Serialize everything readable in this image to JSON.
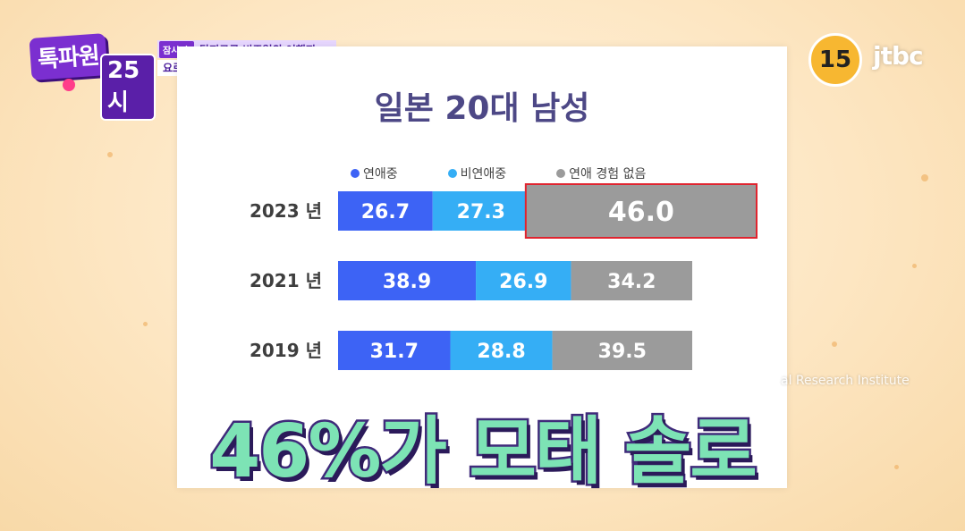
{
  "show_logo": {
    "main": "톡파원",
    "sub": "25시"
  },
  "caption": {
    "tag": "잠시 후",
    "line1": "탈지구급 비주얼의 여행지",
    "line2": "요르단 랜선 여행"
  },
  "age_rating": "15",
  "channel": "jtbc",
  "source_text": "al Research Institute",
  "subtitle": "46%가 모태 솔로",
  "chart_data": {
    "type": "bar",
    "orientation": "horizontal-stacked-100",
    "title": "일본 20대 남성",
    "categories": [
      "2023 년",
      "2021 년",
      "2019 년"
    ],
    "series": [
      {
        "name": "연애중",
        "color": "#3d63f5",
        "values": [
          26.7,
          38.9,
          31.7
        ]
      },
      {
        "name": "비연애중",
        "color": "#35aef5",
        "values": [
          27.3,
          26.9,
          28.8
        ]
      },
      {
        "name": "연애 경험 없음",
        "color": "#9b9b9b",
        "values": [
          46.0,
          34.2,
          39.5
        ]
      }
    ],
    "data_labels": [
      [
        "26.7",
        "27.3",
        "46.0"
      ],
      [
        "38.9",
        "26.9",
        "34.2"
      ],
      [
        "31.7",
        "28.8",
        "39.5"
      ]
    ],
    "legend_position": "top",
    "highlight": {
      "category": "2023 년",
      "series": "연애 경험 없음",
      "color": "#e0242f"
    }
  }
}
